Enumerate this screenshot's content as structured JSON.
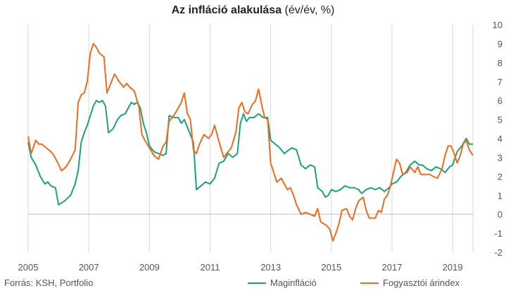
{
  "source": "Forrás: KSH, Portfolio",
  "colors": {
    "core": "#1aa37a",
    "cpi": "#ee6b1f",
    "grid": "#d9d9d9",
    "text": "#555555"
  },
  "chart_data": {
    "type": "line",
    "title_bold": "Az infláció alakulása",
    "title_rest": " (év/év, %)",
    "xlim": [
      2005,
      2019.67
    ],
    "ylim": [
      -2,
      10
    ],
    "y_ticks": [
      -2,
      -1,
      0,
      1,
      2,
      3,
      4,
      5,
      6,
      7,
      8,
      9,
      10
    ],
    "x_ticks": [
      2005,
      2007,
      2009,
      2011,
      2013,
      2015,
      2017,
      2019
    ],
    "grid": "x",
    "legend_position": "bottom-right",
    "series": [
      {
        "name": "Maginfláció",
        "color": "#1aa37a",
        "points": [
          [
            2005.0,
            3.8
          ],
          [
            2005.1,
            3.0
          ],
          [
            2005.25,
            2.6
          ],
          [
            2005.4,
            2.0
          ],
          [
            2005.55,
            1.6
          ],
          [
            2005.65,
            1.7
          ],
          [
            2005.75,
            1.5
          ],
          [
            2005.9,
            1.4
          ],
          [
            2006.0,
            0.5
          ],
          [
            2006.2,
            0.7
          ],
          [
            2006.4,
            1.0
          ],
          [
            2006.55,
            1.6
          ],
          [
            2006.65,
            2.3
          ],
          [
            2006.75,
            3.8
          ],
          [
            2006.85,
            4.3
          ],
          [
            2006.95,
            4.7
          ],
          [
            2007.05,
            5.2
          ],
          [
            2007.15,
            5.7
          ],
          [
            2007.25,
            6.0
          ],
          [
            2007.35,
            5.9
          ],
          [
            2007.45,
            6.0
          ],
          [
            2007.55,
            5.7
          ],
          [
            2007.65,
            4.3
          ],
          [
            2007.8,
            4.5
          ],
          [
            2007.95,
            5.0
          ],
          [
            2008.05,
            5.2
          ],
          [
            2008.2,
            5.3
          ],
          [
            2008.3,
            5.6
          ],
          [
            2008.4,
            5.9
          ],
          [
            2008.5,
            5.8
          ],
          [
            2008.6,
            5.9
          ],
          [
            2008.7,
            5.6
          ],
          [
            2008.8,
            4.8
          ],
          [
            2008.9,
            4.3
          ],
          [
            2009.0,
            3.6
          ],
          [
            2009.15,
            3.3
          ],
          [
            2009.3,
            3.2
          ],
          [
            2009.45,
            3.1
          ],
          [
            2009.55,
            3.2
          ],
          [
            2009.65,
            5.2
          ],
          [
            2009.8,
            5.1
          ],
          [
            2009.95,
            5.1
          ],
          [
            2010.05,
            4.8
          ],
          [
            2010.15,
            5.0
          ],
          [
            2010.25,
            4.6
          ],
          [
            2010.35,
            4.2
          ],
          [
            2010.45,
            3.8
          ],
          [
            2010.55,
            1.3
          ],
          [
            2010.7,
            1.5
          ],
          [
            2010.85,
            1.7
          ],
          [
            2011.0,
            1.6
          ],
          [
            2011.15,
            1.9
          ],
          [
            2011.3,
            2.7
          ],
          [
            2011.45,
            2.8
          ],
          [
            2011.6,
            3.2
          ],
          [
            2011.75,
            3.0
          ],
          [
            2011.9,
            3.2
          ],
          [
            2012.0,
            4.8
          ],
          [
            2012.1,
            5.3
          ],
          [
            2012.2,
            4.9
          ],
          [
            2012.3,
            5.1
          ],
          [
            2012.45,
            5.1
          ],
          [
            2012.6,
            5.3
          ],
          [
            2012.75,
            5.1
          ],
          [
            2012.9,
            5.1
          ],
          [
            2013.0,
            3.9
          ],
          [
            2013.15,
            3.7
          ],
          [
            2013.3,
            3.5
          ],
          [
            2013.45,
            3.2
          ],
          [
            2013.6,
            3.4
          ],
          [
            2013.7,
            3.5
          ],
          [
            2013.85,
            3.4
          ],
          [
            2014.0,
            2.6
          ],
          [
            2014.15,
            2.4
          ],
          [
            2014.3,
            2.6
          ],
          [
            2014.45,
            2.5
          ],
          [
            2014.55,
            1.4
          ],
          [
            2014.7,
            1.2
          ],
          [
            2014.8,
            0.9
          ],
          [
            2014.9,
            1.0
          ],
          [
            2015.0,
            1.3
          ],
          [
            2015.15,
            1.2
          ],
          [
            2015.3,
            1.3
          ],
          [
            2015.45,
            1.5
          ],
          [
            2015.6,
            1.4
          ],
          [
            2015.75,
            1.4
          ],
          [
            2015.9,
            1.3
          ],
          [
            2016.0,
            1.1
          ],
          [
            2016.15,
            1.3
          ],
          [
            2016.3,
            1.4
          ],
          [
            2016.45,
            1.3
          ],
          [
            2016.6,
            1.4
          ],
          [
            2016.75,
            1.2
          ],
          [
            2016.9,
            1.4
          ],
          [
            2017.0,
            1.6
          ],
          [
            2017.15,
            1.7
          ],
          [
            2017.3,
            2.0
          ],
          [
            2017.45,
            2.2
          ],
          [
            2017.6,
            2.6
          ],
          [
            2017.75,
            2.8
          ],
          [
            2017.9,
            2.6
          ],
          [
            2018.0,
            2.6
          ],
          [
            2018.15,
            2.4
          ],
          [
            2018.3,
            2.3
          ],
          [
            2018.45,
            2.5
          ],
          [
            2018.6,
            2.4
          ],
          [
            2018.75,
            2.2
          ],
          [
            2018.9,
            2.5
          ],
          [
            2019.0,
            2.6
          ],
          [
            2019.15,
            3.3
          ],
          [
            2019.3,
            3.6
          ],
          [
            2019.45,
            4.0
          ],
          [
            2019.55,
            3.7
          ],
          [
            2019.67,
            3.7
          ]
        ]
      },
      {
        "name": "Fogyasztói árindex",
        "color": "#ee6b1f",
        "points": [
          [
            2005.0,
            4.1
          ],
          [
            2005.1,
            3.2
          ],
          [
            2005.25,
            3.9
          ],
          [
            2005.35,
            3.7
          ],
          [
            2005.45,
            3.7
          ],
          [
            2005.6,
            3.5
          ],
          [
            2005.75,
            3.3
          ],
          [
            2005.85,
            3.1
          ],
          [
            2005.95,
            2.8
          ],
          [
            2006.1,
            2.3
          ],
          [
            2006.25,
            2.5
          ],
          [
            2006.4,
            2.9
          ],
          [
            2006.55,
            3.4
          ],
          [
            2006.65,
            5.9
          ],
          [
            2006.75,
            6.3
          ],
          [
            2006.85,
            6.4
          ],
          [
            2006.95,
            7.0
          ],
          [
            2007.05,
            8.5
          ],
          [
            2007.15,
            9.0
          ],
          [
            2007.25,
            8.8
          ],
          [
            2007.35,
            8.5
          ],
          [
            2007.5,
            8.3
          ],
          [
            2007.6,
            6.4
          ],
          [
            2007.7,
            6.8
          ],
          [
            2007.85,
            7.4
          ],
          [
            2008.0,
            7.0
          ],
          [
            2008.15,
            6.7
          ],
          [
            2008.25,
            6.9
          ],
          [
            2008.35,
            6.7
          ],
          [
            2008.5,
            6.5
          ],
          [
            2008.65,
            5.7
          ],
          [
            2008.75,
            4.2
          ],
          [
            2008.85,
            3.9
          ],
          [
            2009.0,
            3.5
          ],
          [
            2009.15,
            3.1
          ],
          [
            2009.3,
            2.9
          ],
          [
            2009.45,
            3.6
          ],
          [
            2009.55,
            3.8
          ],
          [
            2009.65,
            4.9
          ],
          [
            2009.8,
            5.2
          ],
          [
            2009.95,
            5.6
          ],
          [
            2010.05,
            5.9
          ],
          [
            2010.15,
            6.4
          ],
          [
            2010.25,
            5.3
          ],
          [
            2010.35,
            5.0
          ],
          [
            2010.45,
            3.4
          ],
          [
            2010.55,
            3.2
          ],
          [
            2010.65,
            3.7
          ],
          [
            2010.8,
            4.2
          ],
          [
            2010.95,
            4.0
          ],
          [
            2011.05,
            4.2
          ],
          [
            2011.15,
            4.7
          ],
          [
            2011.3,
            3.8
          ],
          [
            2011.45,
            3.0
          ],
          [
            2011.55,
            3.2
          ],
          [
            2011.7,
            3.5
          ],
          [
            2011.85,
            4.3
          ],
          [
            2011.95,
            5.6
          ],
          [
            2012.05,
            5.9
          ],
          [
            2012.15,
            5.4
          ],
          [
            2012.25,
            5.3
          ],
          [
            2012.4,
            5.8
          ],
          [
            2012.5,
            6.0
          ],
          [
            2012.6,
            6.6
          ],
          [
            2012.7,
            5.8
          ],
          [
            2012.8,
            5.1
          ],
          [
            2012.9,
            5.0
          ],
          [
            2013.0,
            2.7
          ],
          [
            2013.1,
            2.2
          ],
          [
            2013.2,
            1.7
          ],
          [
            2013.35,
            1.9
          ],
          [
            2013.45,
            1.6
          ],
          [
            2013.55,
            1.3
          ],
          [
            2013.65,
            1.4
          ],
          [
            2013.75,
            1.0
          ],
          [
            2013.85,
            0.5
          ],
          [
            2014.0,
            0.0
          ],
          [
            2014.15,
            0.1
          ],
          [
            2014.3,
            0.0
          ],
          [
            2014.45,
            -0.1
          ],
          [
            2014.55,
            0.3
          ],
          [
            2014.65,
            -0.4
          ],
          [
            2014.75,
            -0.5
          ],
          [
            2014.85,
            -0.6
          ],
          [
            2014.95,
            -0.8
          ],
          [
            2015.05,
            -1.4
          ],
          [
            2015.15,
            -1.0
          ],
          [
            2015.25,
            -0.5
          ],
          [
            2015.35,
            0.2
          ],
          [
            2015.5,
            0.3
          ],
          [
            2015.6,
            -0.1
          ],
          [
            2015.7,
            -0.3
          ],
          [
            2015.8,
            0.3
          ],
          [
            2015.9,
            0.7
          ],
          [
            2016.05,
            0.9
          ],
          [
            2016.15,
            0.2
          ],
          [
            2016.25,
            -0.2
          ],
          [
            2016.35,
            -0.2
          ],
          [
            2016.45,
            -0.2
          ],
          [
            2016.55,
            0.2
          ],
          [
            2016.65,
            0.1
          ],
          [
            2016.75,
            0.8
          ],
          [
            2016.85,
            1.0
          ],
          [
            2016.95,
            1.5
          ],
          [
            2017.05,
            2.2
          ],
          [
            2017.15,
            2.9
          ],
          [
            2017.25,
            2.7
          ],
          [
            2017.35,
            2.1
          ],
          [
            2017.5,
            2.2
          ],
          [
            2017.6,
            2.5
          ],
          [
            2017.75,
            2.2
          ],
          [
            2017.85,
            2.5
          ],
          [
            2017.95,
            2.1
          ],
          [
            2018.1,
            2.1
          ],
          [
            2018.25,
            2.1
          ],
          [
            2018.35,
            2.0
          ],
          [
            2018.5,
            1.9
          ],
          [
            2018.65,
            2.4
          ],
          [
            2018.75,
            3.1
          ],
          [
            2018.85,
            3.6
          ],
          [
            2018.95,
            3.6
          ],
          [
            2019.05,
            3.2
          ],
          [
            2019.15,
            2.7
          ],
          [
            2019.25,
            3.1
          ],
          [
            2019.35,
            3.7
          ],
          [
            2019.45,
            3.9
          ],
          [
            2019.55,
            3.4
          ],
          [
            2019.67,
            3.1
          ]
        ]
      }
    ]
  }
}
